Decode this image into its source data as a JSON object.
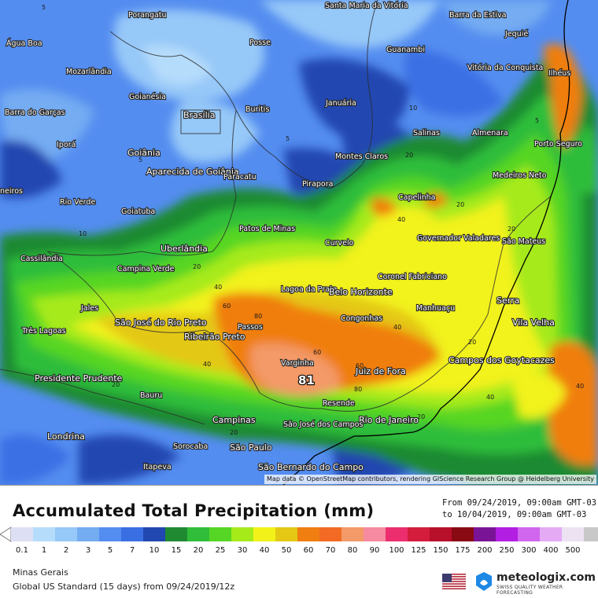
{
  "header": {
    "title": "Accumulated Total Precipitation (mm)",
    "period_from": "From 09/24/2019, 09:00am GMT-03",
    "period_to": "to 10/04/2019, 09:00am GMT-03"
  },
  "legend": {
    "levels": [
      "0.1",
      "1",
      "2",
      "3",
      "5",
      "7",
      "10",
      "15",
      "20",
      "25",
      "30",
      "40",
      "50",
      "60",
      "70",
      "80",
      "90",
      "100",
      "125",
      "150",
      "175",
      "200",
      "250",
      "300",
      "400",
      "500"
    ],
    "colors": [
      "#dde0f4",
      "#b6dcfb",
      "#96c8f8",
      "#74acf2",
      "#548df0",
      "#3a6fe4",
      "#2147b0",
      "#1f8a32",
      "#2fbd3a",
      "#56d624",
      "#a6ea1a",
      "#f2f21a",
      "#e4c814",
      "#f07e10",
      "#f26a24",
      "#f39a68",
      "#f58aa0",
      "#ec2e6e",
      "#d41c3c",
      "#b80f2a",
      "#8a0a14",
      "#7a1496",
      "#b21ee2",
      "#d066ee",
      "#e4aaf4",
      "#ece2f2",
      "#c8c8c8"
    ]
  },
  "footer": {
    "region": "Minas Gerais",
    "model": "Global US Standard (15 days) from 09/24/2019/12z",
    "brand": "meteologix.com",
    "brand_tagline": "SWISS QUALITY WEATHER FORECASTING",
    "attribution": "Map data © OpenStreetMap contributors, rendering GIScience Research Group @ Heidelberg University"
  },
  "map": {
    "max_value": "81",
    "cities": [
      {
        "name": "Porangatu"
      },
      {
        "name": "Santa Maria da Vitória"
      },
      {
        "name": "Barra da Estiva"
      },
      {
        "name": "Água Boa"
      },
      {
        "name": "Posse"
      },
      {
        "name": "Guanambi"
      },
      {
        "name": "Jequié"
      },
      {
        "name": "Mozarlândia"
      },
      {
        "name": "Vitória da Conquista"
      },
      {
        "name": "Ilhéus"
      },
      {
        "name": "Goianésia"
      },
      {
        "name": "Brasília"
      },
      {
        "name": "Buritis"
      },
      {
        "name": "Januária"
      },
      {
        "name": "Barra do Garças"
      },
      {
        "name": "Salinas"
      },
      {
        "name": "Almenara"
      },
      {
        "name": "Porto Seguro"
      },
      {
        "name": "Iporá"
      },
      {
        "name": "Goiânia"
      },
      {
        "name": "Montes Claros"
      },
      {
        "name": "Aparecida de Goiânia"
      },
      {
        "name": "Paracatu"
      },
      {
        "name": "Medeiros Neto"
      },
      {
        "name": "neiros"
      },
      {
        "name": "Pirapora"
      },
      {
        "name": "Capelinha"
      },
      {
        "name": "Rio Verde"
      },
      {
        "name": "Goiatuba"
      },
      {
        "name": "Patos de Minas"
      },
      {
        "name": "Governador Valadares"
      },
      {
        "name": "São Mateus"
      },
      {
        "name": "Curvelo"
      },
      {
        "name": "Cassilândia"
      },
      {
        "name": "Uberlândia"
      },
      {
        "name": "Campina Verde"
      },
      {
        "name": "Coronel Fabriciano"
      },
      {
        "name": "Lagoa da Prata"
      },
      {
        "name": "Belo Horizonte"
      },
      {
        "name": "Serra"
      },
      {
        "name": "Jales"
      },
      {
        "name": "Manhuaçu"
      },
      {
        "name": "Passos"
      },
      {
        "name": "Congonhas"
      },
      {
        "name": "Vila Velha"
      },
      {
        "name": "São José do Rio Preto"
      },
      {
        "name": "Três Lagoas"
      },
      {
        "name": "Ribeirão Preto"
      },
      {
        "name": "Varginha"
      },
      {
        "name": "Juiz de Fora"
      },
      {
        "name": "Campos dos Goytacazes"
      },
      {
        "name": "Presidente Prudente"
      },
      {
        "name": "Bauru"
      },
      {
        "name": "Resende"
      },
      {
        "name": "Campinas"
      },
      {
        "name": "Rio de Janeiro"
      },
      {
        "name": "São José dos Campos"
      },
      {
        "name": "Londrina"
      },
      {
        "name": "Sorocaba"
      },
      {
        "name": "São Paulo"
      },
      {
        "name": "Itapeva"
      },
      {
        "name": "São Bernardo do Campo"
      }
    ],
    "contour_labels": [
      "5",
      "5",
      "5",
      "5",
      "5",
      "10",
      "10",
      "20",
      "20",
      "20",
      "20",
      "20",
      "20",
      "20",
      "20",
      "40",
      "40",
      "40",
      "40",
      "40",
      "40",
      "60",
      "60",
      "60",
      "80",
      "80"
    ]
  }
}
